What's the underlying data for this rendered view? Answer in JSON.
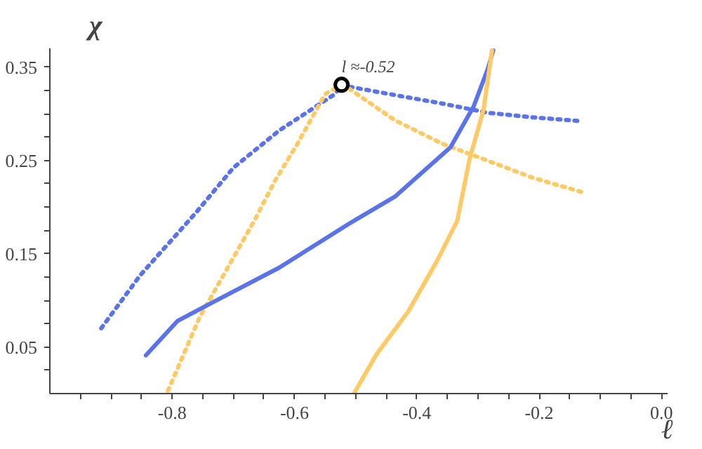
{
  "chart_data": {
    "type": "line",
    "xlabel": "ℓ",
    "ylabel": "χ",
    "xlim": [
      -1.0,
      0.01
    ],
    "ylim": [
      0.0,
      0.37
    ],
    "xticks": [
      {
        "value": -0.95,
        "label": null
      },
      {
        "value": -0.9,
        "label": null
      },
      {
        "value": -0.85,
        "label": null
      },
      {
        "value": -0.8,
        "label": "-0.8"
      },
      {
        "value": -0.75,
        "label": null
      },
      {
        "value": -0.7,
        "label": null
      },
      {
        "value": -0.65,
        "label": null
      },
      {
        "value": -0.6,
        "label": "-0.6"
      },
      {
        "value": -0.55,
        "label": null
      },
      {
        "value": -0.5,
        "label": null
      },
      {
        "value": -0.45,
        "label": null
      },
      {
        "value": -0.4,
        "label": "-0.4"
      },
      {
        "value": -0.35,
        "label": null
      },
      {
        "value": -0.3,
        "label": null
      },
      {
        "value": -0.25,
        "label": null
      },
      {
        "value": -0.2,
        "label": "-0.2"
      },
      {
        "value": -0.15,
        "label": null
      },
      {
        "value": -0.1,
        "label": null
      },
      {
        "value": -0.05,
        "label": null
      },
      {
        "value": 0.0,
        "label": "0.0"
      }
    ],
    "yticks": [
      {
        "value": 0.025,
        "label": null
      },
      0.05,
      {
        "value": 0.075,
        "label": null
      },
      {
        "value": 0.1,
        "label": null
      },
      {
        "value": 0.125,
        "label": null
      },
      0.15,
      {
        "value": 0.175,
        "label": null
      },
      {
        "value": 0.2,
        "label": null
      },
      {
        "value": 0.225,
        "label": null
      },
      0.25,
      {
        "value": 0.275,
        "label": null
      },
      {
        "value": 0.3,
        "label": null
      },
      {
        "value": 0.325,
        "label": null
      },
      0.35
    ],
    "grid": false,
    "series": [
      {
        "color": "#5b73e8",
        "line_style": "dotted",
        "x": [
          -0.916,
          -0.852,
          -0.761,
          -0.7,
          -0.625,
          -0.534,
          -0.523
        ],
        "values": [
          0.07,
          0.127,
          0.194,
          0.242,
          0.282,
          0.321,
          0.331
        ]
      },
      {
        "color": "#5b73e8",
        "line_style": "dotted",
        "x": [
          -0.523,
          -0.511,
          -0.436,
          -0.359,
          -0.284,
          -0.209,
          -0.13
        ],
        "values": [
          0.331,
          0.329,
          0.32,
          0.311,
          0.301,
          0.296,
          0.292
        ]
      },
      {
        "color": "#ffc966",
        "line_style": "dotted",
        "x": [
          -0.807,
          -0.755,
          -0.666,
          -0.632,
          -0.595,
          -0.55,
          -0.523
        ],
        "values": [
          0.003,
          0.082,
          0.185,
          0.228,
          0.268,
          0.321,
          0.331
        ]
      },
      {
        "color": "#ffc966",
        "line_style": "dotted",
        "x": [
          -0.523,
          -0.511,
          -0.436,
          -0.359,
          -0.302,
          -0.209,
          -0.125
        ],
        "values": [
          0.331,
          0.327,
          0.293,
          0.268,
          0.254,
          0.231,
          0.215
        ]
      },
      {
        "color": "#5b73e8",
        "line_style": "solid",
        "x": [
          -0.843,
          -0.791,
          -0.739,
          -0.625,
          -0.511,
          -0.436,
          -0.345,
          -0.307,
          -0.284,
          -0.275
        ],
        "values": [
          0.041,
          0.078,
          0.096,
          0.135,
          0.182,
          0.211,
          0.264,
          0.308,
          0.348,
          0.368
        ]
      },
      {
        "color": "#ffc966",
        "line_style": "solid",
        "x": [
          -0.502,
          -0.466,
          -0.414,
          -0.368,
          -0.334,
          -0.314,
          -0.291,
          -0.277
        ],
        "values": [
          0.001,
          0.042,
          0.088,
          0.141,
          0.185,
          0.251,
          0.304,
          0.368
        ]
      },
      {
        "type": "scatter",
        "color": "#000000",
        "marker": "circle",
        "x": [
          -0.523
        ],
        "values": [
          0.331
        ]
      }
    ],
    "annotations": [
      {
        "text": "l ≈-0.52",
        "x": -0.523,
        "y": 0.331
      }
    ]
  }
}
